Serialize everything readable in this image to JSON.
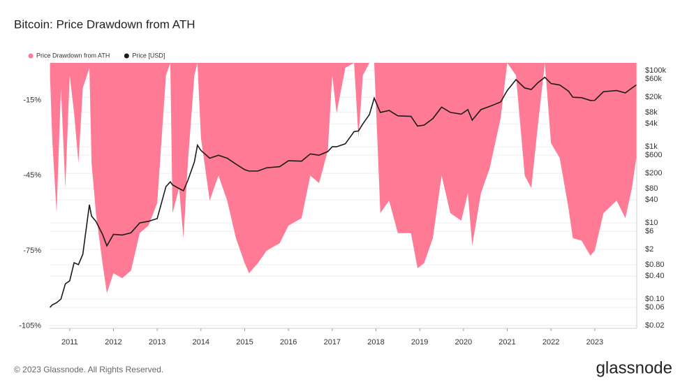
{
  "chart_data": {
    "type": "line",
    "title": "Bitcoin: Price Drawdown from ATH",
    "x": [
      2010.55,
      2010.6,
      2010.7,
      2010.8,
      2010.9,
      2011.0,
      2011.1,
      2011.2,
      2011.3,
      2011.45,
      2011.5,
      2011.6,
      2011.75,
      2011.85,
      2012.0,
      2012.2,
      2012.4,
      2012.6,
      2012.8,
      2013.0,
      2013.2,
      2013.3,
      2013.35,
      2013.5,
      2013.6,
      2013.7,
      2013.85,
      2013.92,
      2014.0,
      2014.2,
      2014.4,
      2014.6,
      2014.8,
      2015.0,
      2015.1,
      2015.3,
      2015.5,
      2015.8,
      2016.0,
      2016.3,
      2016.5,
      2016.7,
      2016.9,
      2017.0,
      2017.1,
      2017.3,
      2017.5,
      2017.6,
      2017.7,
      2017.85,
      2017.96,
      2018.1,
      2018.3,
      2018.5,
      2018.8,
      2018.95,
      2019.1,
      2019.3,
      2019.5,
      2019.7,
      2019.95,
      2020.1,
      2020.2,
      2020.4,
      2020.6,
      2020.85,
      2021.0,
      2021.2,
      2021.4,
      2021.55,
      2021.7,
      2021.86,
      2022.0,
      2022.2,
      2022.4,
      2022.5,
      2022.7,
      2022.9,
      2023.0,
      2023.2,
      2023.5,
      2023.7,
      2023.85,
      2023.95
    ],
    "series": [
      {
        "name": "Price Drawdown from ATH",
        "kind": "area",
        "color": "#ff7a95",
        "axis": "y",
        "values": [
          -5,
          -30,
          -60,
          -10,
          -50,
          -5,
          -20,
          -40,
          -10,
          -2,
          -40,
          -60,
          -80,
          -92,
          -84,
          -86,
          -83,
          -68,
          -65,
          -56,
          -5,
          0,
          -60,
          -50,
          -70,
          -40,
          -5,
          0,
          -30,
          -55,
          -45,
          -55,
          -70,
          -80,
          -84,
          -80,
          -75,
          -72,
          -65,
          -62,
          -45,
          -48,
          -35,
          -5,
          -20,
          -2,
          0,
          -30,
          -5,
          0,
          0,
          -60,
          -55,
          -68,
          -68,
          -82,
          -80,
          -70,
          -45,
          -60,
          -63,
          -52,
          -73,
          -52,
          -42,
          -22,
          0,
          -5,
          -45,
          -50,
          -25,
          0,
          -32,
          -38,
          -58,
          -70,
          -71,
          -77,
          -75,
          -60,
          -55,
          -62,
          -50,
          -38
        ]
      },
      {
        "name": "Price [USD]",
        "kind": "line",
        "color": "#1a1a1a",
        "axis": "y2",
        "values": [
          0.06,
          0.07,
          0.08,
          0.1,
          0.25,
          0.3,
          0.9,
          0.8,
          1.5,
          30,
          15,
          11,
          5,
          2.5,
          5,
          4.8,
          5.5,
          10,
          11,
          13,
          90,
          120,
          100,
          80,
          70,
          130,
          400,
          1100,
          800,
          500,
          600,
          500,
          350,
          250,
          230,
          230,
          280,
          300,
          430,
          420,
          650,
          600,
          750,
          1000,
          1000,
          1200,
          2500,
          2600,
          4000,
          7000,
          19000,
          8000,
          9000,
          6500,
          6300,
          3500,
          3700,
          5500,
          11000,
          8000,
          7200,
          9500,
          5000,
          9500,
          11500,
          15000,
          30000,
          58000,
          35000,
          32000,
          48000,
          67000,
          46000,
          42000,
          29000,
          20000,
          19500,
          16500,
          16600,
          28000,
          30000,
          26000,
          35000,
          42000
        ]
      }
    ],
    "xlim": [
      2010.54,
      2023.96
    ],
    "xticks": [
      2011,
      2012,
      2013,
      2014,
      2015,
      2016,
      2017,
      2018,
      2019,
      2020,
      2021,
      2022,
      2023
    ],
    "ylim": [
      -106,
      0
    ],
    "yticks": [
      {
        "value": -15,
        "label": "-15%"
      },
      {
        "value": -45,
        "label": "-45%"
      },
      {
        "value": -75,
        "label": "-75%"
      },
      {
        "value": -105,
        "label": "-105%"
      }
    ],
    "y2lim": [
      0.017,
      160000
    ],
    "y2log": true,
    "y2ticks": [
      {
        "value": 100000,
        "label": "$100k"
      },
      {
        "value": 60000,
        "label": "$60k"
      },
      {
        "value": 20000,
        "label": "$20k"
      },
      {
        "value": 8000,
        "label": "$8k"
      },
      {
        "value": 4000,
        "label": "$4k"
      },
      {
        "value": 1000,
        "label": "$1k"
      },
      {
        "value": 600,
        "label": "$600"
      },
      {
        "value": 200,
        "label": "$200"
      },
      {
        "value": 80,
        "label": "$80"
      },
      {
        "value": 40,
        "label": "$40"
      },
      {
        "value": 10,
        "label": "$10"
      },
      {
        "value": 6,
        "label": "$6"
      },
      {
        "value": 2,
        "label": "$2"
      },
      {
        "value": 0.8,
        "label": "$0.80"
      },
      {
        "value": 0.4,
        "label": "$0.40"
      },
      {
        "value": 0.1,
        "label": "$0.10"
      },
      {
        "value": 0.06,
        "label": "$0.06"
      },
      {
        "value": 0.02,
        "label": "$0.02"
      }
    ],
    "grid": true,
    "legend": "top-left"
  },
  "footer": "© 2023 Glassnode. All Rights Reserved.",
  "brand": "glassnode"
}
